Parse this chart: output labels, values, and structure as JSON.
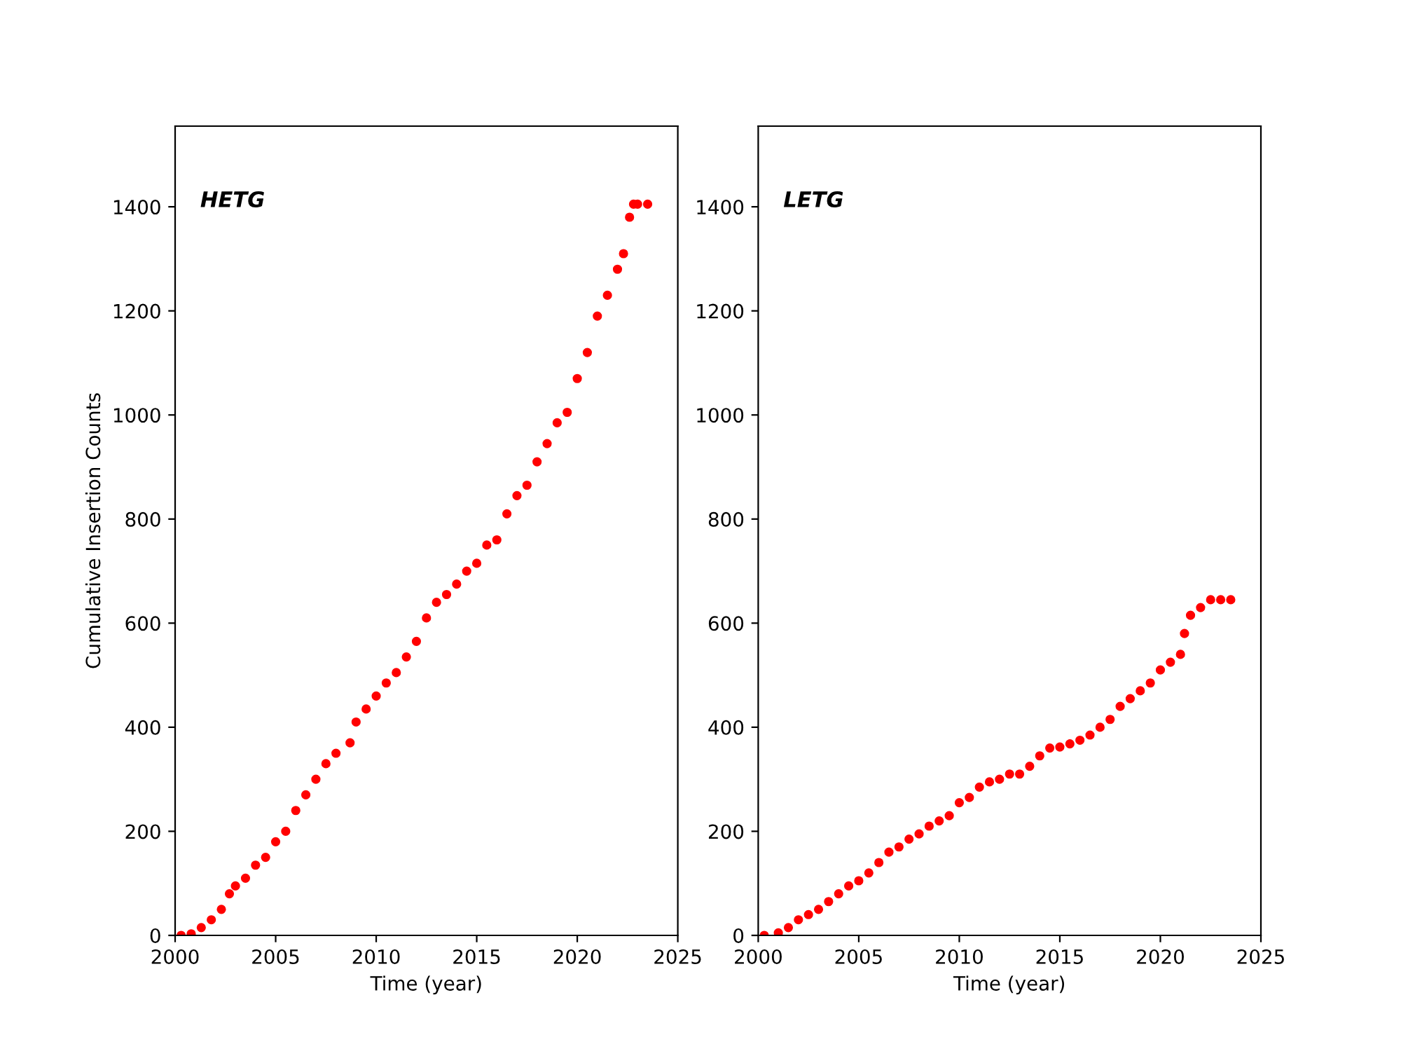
{
  "chart_data": [
    {
      "type": "scatter",
      "xlabel": "Time (year)",
      "ylabel": "Cumulative Insertion Counts",
      "annotations": [
        "HETG"
      ],
      "marker": "circle",
      "grid": false,
      "xlim": [
        2000,
        2025
      ],
      "xticks": [
        2000,
        2005,
        2010,
        2015,
        2020,
        2025
      ],
      "ylim": [
        0,
        1555
      ],
      "yticks": [
        0,
        200,
        400,
        600,
        800,
        1000,
        1200,
        1400
      ],
      "series": [
        {
          "color": "#ff0000",
          "x": [
            2000.3,
            2000.8,
            2001.3,
            2001.8,
            2002.3,
            2002.7,
            2003,
            2003.5,
            2004,
            2004.5,
            2005,
            2005.5,
            2006,
            2006.5,
            2007,
            2007.5,
            2008,
            2008.7,
            2009,
            2009.5,
            2010,
            2010.5,
            2011,
            2011.5,
            2012,
            2012.5,
            2013,
            2013.5,
            2014,
            2014.5,
            2015,
            2015.5,
            2016,
            2016.5,
            2017,
            2017.5,
            2018,
            2018.5,
            2019,
            2019.5,
            2020,
            2020.5,
            2021,
            2021.5,
            2022,
            2022.3,
            2022.6,
            2022.8,
            2023,
            2023.5
          ],
          "values": [
            0,
            3,
            15,
            30,
            50,
            80,
            95,
            110,
            135,
            150,
            180,
            200,
            240,
            270,
            300,
            330,
            350,
            370,
            410,
            435,
            460,
            485,
            505,
            535,
            565,
            610,
            640,
            655,
            675,
            700,
            715,
            750,
            760,
            810,
            845,
            865,
            910,
            945,
            985,
            1005,
            1070,
            1120,
            1190,
            1230,
            1280,
            1310,
            1380,
            1405,
            1405,
            1405
          ]
        }
      ]
    },
    {
      "type": "scatter",
      "xlabel": "Time (year)",
      "annotations": [
        "LETG"
      ],
      "marker": "circle",
      "grid": false,
      "xlim": [
        2000,
        2025
      ],
      "xticks": [
        2000,
        2005,
        2010,
        2015,
        2020,
        2025
      ],
      "ylim": [
        0,
        1555
      ],
      "yticks": [
        0,
        200,
        400,
        600,
        800,
        1000,
        1200,
        1400
      ],
      "series": [
        {
          "color": "#ff0000",
          "x": [
            2000.3,
            2001,
            2001.5,
            2002,
            2002.5,
            2003,
            2003.5,
            2004,
            2004.5,
            2005,
            2005.5,
            2006,
            2006.5,
            2007,
            2007.5,
            2008,
            2008.5,
            2009,
            2009.5,
            2010,
            2010.5,
            2011,
            2011.5,
            2012,
            2012.5,
            2013,
            2013.5,
            2014,
            2014.5,
            2015,
            2015.5,
            2016,
            2016.5,
            2017,
            2017.5,
            2018,
            2018.5,
            2019,
            2019.5,
            2020,
            2020.5,
            2021,
            2021.2,
            2021.5,
            2022,
            2022.5,
            2023,
            2023.5
          ],
          "values": [
            0,
            5,
            15,
            30,
            40,
            50,
            65,
            80,
            95,
            105,
            120,
            140,
            160,
            170,
            185,
            195,
            210,
            220,
            230,
            255,
            265,
            285,
            295,
            300,
            310,
            310,
            325,
            345,
            360,
            362,
            368,
            375,
            385,
            400,
            415,
            440,
            455,
            470,
            485,
            510,
            525,
            540,
            580,
            615,
            630,
            645,
            645,
            645
          ]
        }
      ]
    }
  ]
}
